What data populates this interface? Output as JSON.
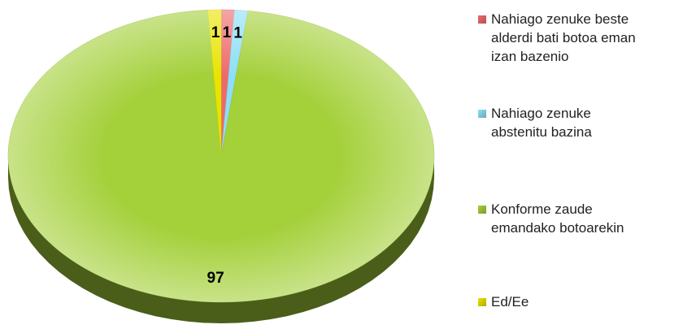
{
  "chart_data": {
    "type": "pie",
    "categories": [
      "Nahiago zenuke beste alderdi bati botoa eman izan bazenio",
      "Nahiago zenuke abstenitu bazina",
      "Konforme zaude emandako botoarekin",
      "Ed/Ee"
    ],
    "values": [
      1,
      1,
      97,
      1
    ],
    "colors": [
      "#ee6a6a",
      "#8ddff5",
      "#a4d03a",
      "#e8e400"
    ],
    "legend": "right"
  }
}
